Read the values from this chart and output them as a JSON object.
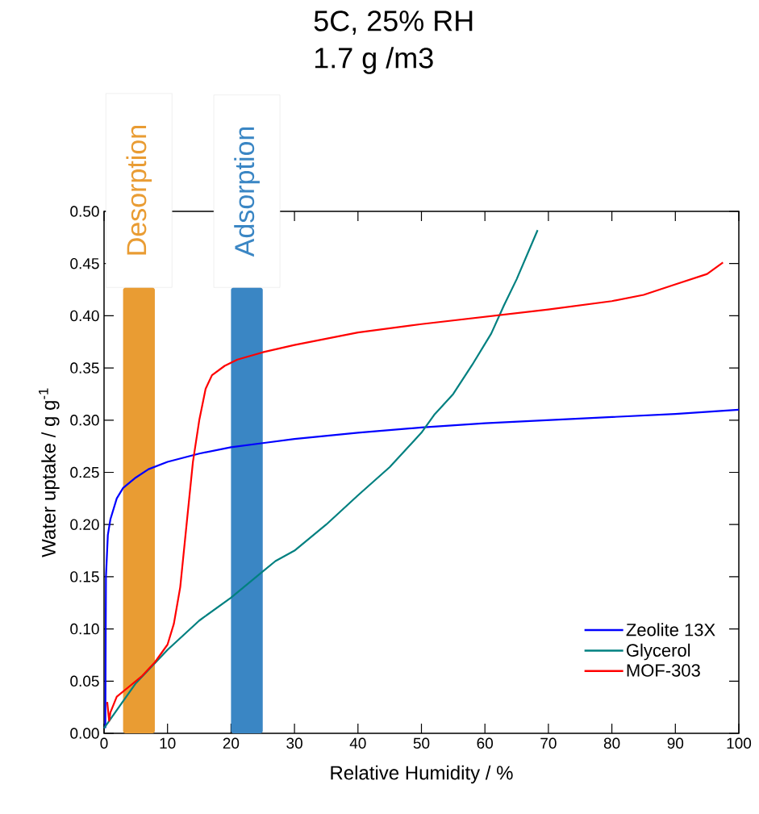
{
  "chart_data": {
    "type": "line",
    "title": "5C, 25% RH",
    "subtitle": "1.7 g /m3",
    "xlabel": "Relative Humidity / %",
    "ylabel": "Water uptake / g g$^{-1}$",
    "xlim": [
      0,
      100
    ],
    "ylim": [
      0,
      0.5
    ],
    "xticks": [
      0,
      10,
      20,
      30,
      40,
      50,
      60,
      70,
      80,
      90,
      100
    ],
    "yticks": [
      {
        "value": 0,
        "label": "0.00"
      },
      {
        "value": 0.05,
        "label": "0.05"
      },
      {
        "value": 0.1,
        "label": "0.10"
      },
      {
        "value": 0.15,
        "label": "0.15"
      },
      {
        "value": 0.2,
        "label": "0.20"
      },
      {
        "value": 0.25,
        "label": "0.25"
      },
      {
        "value": 0.3,
        "label": "0.30"
      },
      {
        "value": 0.35,
        "label": "0.35"
      },
      {
        "value": 0.4,
        "label": "0.40"
      },
      {
        "value": 0.45,
        "label": "0.45"
      },
      {
        "value": 0.5,
        "label": "0.50"
      }
    ],
    "legend": "bottom right",
    "bands": [
      {
        "axis": "x",
        "from": 3,
        "to": 8,
        "label": "Desorption",
        "color": "#e99c33"
      },
      {
        "axis": "x",
        "from": 20,
        "to": 25,
        "label": "Adsorption",
        "color": "#3a86c4"
      }
    ],
    "series": [
      {
        "name": "Zeolite 13X",
        "color": "#0000ff",
        "x": [
          0.2,
          0.3,
          0.6,
          1,
          2,
          3,
          5,
          7,
          10,
          15,
          20,
          25,
          30,
          40,
          50,
          60,
          70,
          80,
          90,
          100
        ],
        "values": [
          0.005,
          0.15,
          0.19,
          0.205,
          0.225,
          0.235,
          0.245,
          0.253,
          0.26,
          0.268,
          0.274,
          0.278,
          0.282,
          0.288,
          0.293,
          0.297,
          0.3,
          0.303,
          0.306,
          0.31
        ]
      },
      {
        "name": "Glycerol",
        "color": "#008080",
        "x": [
          0,
          5,
          10,
          15,
          20,
          25,
          27,
          30,
          35,
          40,
          45,
          50,
          52,
          55,
          58,
          61,
          63,
          65,
          68.3
        ],
        "values": [
          0.005,
          0.048,
          0.08,
          0.108,
          0.13,
          0.155,
          0.165,
          0.175,
          0.2,
          0.228,
          0.255,
          0.288,
          0.305,
          0.325,
          0.353,
          0.383,
          0.41,
          0.435,
          0.482
        ]
      },
      {
        "name": "MOF-303",
        "color": "#ff0000",
        "x": [
          0.5,
          0.8,
          1,
          2,
          4,
          6,
          8,
          10,
          11,
          12,
          13,
          14,
          15,
          16,
          17,
          19,
          21,
          25,
          30,
          40,
          50,
          60,
          70,
          80,
          85,
          90,
          95,
          97.5
        ],
        "values": [
          0.03,
          0.012,
          0.02,
          0.035,
          0.045,
          0.055,
          0.068,
          0.085,
          0.105,
          0.14,
          0.2,
          0.26,
          0.3,
          0.33,
          0.343,
          0.352,
          0.358,
          0.365,
          0.372,
          0.384,
          0.392,
          0.399,
          0.406,
          0.414,
          0.42,
          0.43,
          0.44,
          0.451
        ]
      }
    ]
  }
}
